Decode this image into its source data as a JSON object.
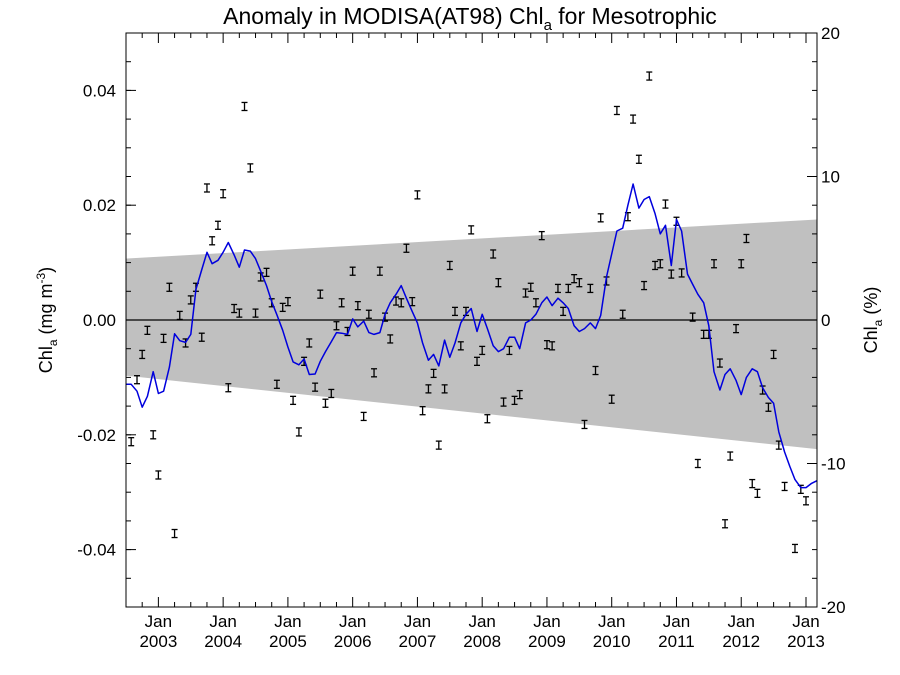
{
  "chart_data": {
    "type": "scatter",
    "title": "Anomaly in MODISA(AT98) Chl",
    "title_sub": "a",
    "title_suffix": " for Mesotrophic",
    "ylabel_left": "Chl",
    "ylabel_left_sub": "a",
    "ylabel_left_units": " (mg m",
    "ylabel_left_sup": "-3",
    "ylabel_left_close": ")",
    "ylabel_right": "Chl",
    "ylabel_right_sub": "a",
    "ylabel_right_units": " (%)",
    "x_range": [
      2002.5,
      2013.17
    ],
    "ylim_left": [
      -0.05,
      0.05
    ],
    "ylim_right": [
      -20,
      20
    ],
    "x_ticks": [
      {
        "x": 2003.0,
        "line1": "Jan",
        "line2": "2003"
      },
      {
        "x": 2004.0,
        "line1": "Jan",
        "line2": "2004"
      },
      {
        "x": 2005.0,
        "line1": "Jan",
        "line2": "2005"
      },
      {
        "x": 2006.0,
        "line1": "Jan",
        "line2": "2006"
      },
      {
        "x": 2007.0,
        "line1": "Jan",
        "line2": "2007"
      },
      {
        "x": 2008.0,
        "line1": "Jan",
        "line2": "2008"
      },
      {
        "x": 2009.0,
        "line1": "Jan",
        "line2": "2009"
      },
      {
        "x": 2010.0,
        "line1": "Jan",
        "line2": "2010"
      },
      {
        "x": 2011.0,
        "line1": "Jan",
        "line2": "2011"
      },
      {
        "x": 2012.0,
        "line1": "Jan",
        "line2": "2012"
      },
      {
        "x": 2013.0,
        "line1": "Jan",
        "line2": "2013"
      }
    ],
    "y_ticks_left": [
      {
        "value": 0.04,
        "label": "0.04"
      },
      {
        "value": 0.02,
        "label": "0.02"
      },
      {
        "value": 0.0,
        "label": "0.00"
      },
      {
        "value": -0.02,
        "label": "-0.02"
      },
      {
        "value": -0.04,
        "label": "-0.04"
      }
    ],
    "y_ticks_right": [
      {
        "value": 20,
        "label": "20"
      },
      {
        "value": 10,
        "label": "10"
      },
      {
        "value": 0,
        "label": "0"
      },
      {
        "value": -10,
        "label": "-10"
      },
      {
        "value": -20,
        "label": "-20"
      }
    ],
    "zero_line": true,
    "trend_band": {
      "color": "#c0c0c0",
      "upper": [
        [
          2002.5,
          0.0107
        ],
        [
          2013.17,
          0.0175
        ]
      ],
      "lower": [
        [
          2002.5,
          -0.0097
        ],
        [
          2013.17,
          -0.0225
        ]
      ]
    },
    "points": {
      "color": "#000000",
      "error_halfwidth": 0.0007,
      "values": [
        [
          2002.58,
          -0.0212
        ],
        [
          2002.67,
          -0.0104
        ],
        [
          2002.75,
          -0.006
        ],
        [
          2002.83,
          -0.0018
        ],
        [
          2002.92,
          -0.02
        ],
        [
          2003.0,
          -0.027
        ],
        [
          2003.08,
          -0.0032
        ],
        [
          2003.17,
          0.0057
        ],
        [
          2003.25,
          -0.0372
        ],
        [
          2003.33,
          0.0008
        ],
        [
          2003.42,
          -0.004
        ],
        [
          2003.5,
          0.0035
        ],
        [
          2003.58,
          0.0057
        ],
        [
          2003.67,
          -0.003
        ],
        [
          2003.75,
          0.023
        ],
        [
          2003.83,
          0.0138
        ],
        [
          2003.92,
          0.0165
        ],
        [
          2004.0,
          0.022
        ],
        [
          2004.08,
          -0.0118
        ],
        [
          2004.17,
          0.002
        ],
        [
          2004.25,
          0.0012
        ],
        [
          2004.33,
          0.0372
        ],
        [
          2004.42,
          0.0265
        ],
        [
          2004.5,
          0.0012
        ],
        [
          2004.58,
          0.0075
        ],
        [
          2004.67,
          0.0083
        ],
        [
          2004.75,
          0.003
        ],
        [
          2004.83,
          -0.0112
        ],
        [
          2004.92,
          0.0022
        ],
        [
          2005.0,
          0.0032
        ],
        [
          2005.08,
          -0.014
        ],
        [
          2005.17,
          -0.0195
        ],
        [
          2005.25,
          -0.0072
        ],
        [
          2005.33,
          -0.004
        ],
        [
          2005.42,
          -0.0117
        ],
        [
          2005.5,
          0.0045
        ],
        [
          2005.58,
          -0.0145
        ],
        [
          2005.67,
          -0.0128
        ],
        [
          2005.75,
          -0.001
        ],
        [
          2005.83,
          0.003
        ],
        [
          2005.92,
          -0.002
        ],
        [
          2006.0,
          0.0085
        ],
        [
          2006.08,
          0.0025
        ],
        [
          2006.17,
          -0.0168
        ],
        [
          2006.25,
          0.001
        ],
        [
          2006.33,
          -0.0092
        ],
        [
          2006.42,
          0.0085
        ],
        [
          2006.5,
          0.0005
        ],
        [
          2006.58,
          -0.0033
        ],
        [
          2006.67,
          0.0033
        ],
        [
          2006.75,
          0.003
        ],
        [
          2006.83,
          0.0125
        ],
        [
          2006.92,
          0.0032
        ],
        [
          2007.0,
          0.0218
        ],
        [
          2007.08,
          -0.0158
        ],
        [
          2007.17,
          -0.012
        ],
        [
          2007.25,
          -0.0093
        ],
        [
          2007.33,
          -0.0218
        ],
        [
          2007.42,
          -0.012
        ],
        [
          2007.5,
          0.0095
        ],
        [
          2007.58,
          0.0015
        ],
        [
          2007.67,
          -0.0045
        ],
        [
          2007.75,
          0.0015
        ],
        [
          2007.83,
          0.0157
        ],
        [
          2007.92,
          -0.0072
        ],
        [
          2008.0,
          -0.0053
        ],
        [
          2008.08,
          -0.0172
        ],
        [
          2008.17,
          0.0115
        ],
        [
          2008.25,
          0.0065
        ],
        [
          2008.33,
          -0.0143
        ],
        [
          2008.42,
          -0.0053
        ],
        [
          2008.5,
          -0.014
        ],
        [
          2008.58,
          -0.013
        ],
        [
          2008.67,
          0.0047
        ],
        [
          2008.75,
          0.0057
        ],
        [
          2008.83,
          0.003
        ],
        [
          2008.92,
          0.0147
        ],
        [
          2009.0,
          -0.0043
        ],
        [
          2009.08,
          -0.0045
        ],
        [
          2009.17,
          0.0055
        ],
        [
          2009.25,
          0.0015
        ],
        [
          2009.33,
          0.0055
        ],
        [
          2009.42,
          0.0072
        ],
        [
          2009.5,
          0.0065
        ],
        [
          2009.58,
          -0.0182
        ],
        [
          2009.67,
          0.0055
        ],
        [
          2009.75,
          -0.0088
        ],
        [
          2009.83,
          0.0178
        ],
        [
          2009.92,
          0.0068
        ],
        [
          2010.0,
          -0.0138
        ],
        [
          2010.08,
          0.0365
        ],
        [
          2010.17,
          0.001
        ],
        [
          2010.25,
          0.018
        ],
        [
          2010.33,
          0.035
        ],
        [
          2010.42,
          0.028
        ],
        [
          2010.5,
          0.006
        ],
        [
          2010.58,
          0.0425
        ],
        [
          2010.67,
          0.0095
        ],
        [
          2010.75,
          0.0098
        ],
        [
          2010.83,
          0.0202
        ],
        [
          2010.92,
          0.008
        ],
        [
          2011.0,
          0.0172
        ],
        [
          2011.08,
          0.0082
        ],
        [
          2011.25,
          0.0005
        ],
        [
          2011.33,
          -0.025
        ],
        [
          2011.42,
          -0.0025
        ],
        [
          2011.5,
          -0.0025
        ],
        [
          2011.58,
          0.0098
        ],
        [
          2011.67,
          -0.0075
        ],
        [
          2011.75,
          -0.0355
        ],
        [
          2011.83,
          -0.0237
        ],
        [
          2011.92,
          -0.0015
        ],
        [
          2012.0,
          0.0098
        ],
        [
          2012.08,
          0.0142
        ],
        [
          2012.17,
          -0.0285
        ],
        [
          2012.25,
          -0.0302
        ],
        [
          2012.33,
          -0.0122
        ],
        [
          2012.42,
          -0.0152
        ],
        [
          2012.5,
          -0.006
        ],
        [
          2012.58,
          -0.0218
        ],
        [
          2012.67,
          -0.029
        ],
        [
          2012.83,
          -0.0398
        ],
        [
          2012.92,
          -0.0295
        ],
        [
          2013.0,
          -0.0315
        ]
      ]
    },
    "series": [
      {
        "type": "line",
        "color": "#0000dd",
        "x": [
          2002.5,
          2002.58,
          2002.67,
          2002.75,
          2002.83,
          2002.92,
          2003.0,
          2003.08,
          2003.17,
          2003.25,
          2003.33,
          2003.42,
          2003.5,
          2003.58,
          2003.67,
          2003.75,
          2003.83,
          2003.92,
          2004.0,
          2004.08,
          2004.17,
          2004.25,
          2004.33,
          2004.42,
          2004.5,
          2004.58,
          2004.67,
          2004.75,
          2004.83,
          2004.92,
          2005.0,
          2005.08,
          2005.17,
          2005.25,
          2005.33,
          2005.42,
          2005.5,
          2005.58,
          2005.67,
          2005.75,
          2005.83,
          2005.92,
          2006.0,
          2006.08,
          2006.17,
          2006.25,
          2006.33,
          2006.42,
          2006.5,
          2006.58,
          2006.67,
          2006.75,
          2006.83,
          2006.92,
          2007.0,
          2007.08,
          2007.17,
          2007.25,
          2007.33,
          2007.42,
          2007.5,
          2007.58,
          2007.67,
          2007.75,
          2007.83,
          2007.92,
          2008.0,
          2008.08,
          2008.17,
          2008.25,
          2008.33,
          2008.42,
          2008.5,
          2008.58,
          2008.67,
          2008.75,
          2008.83,
          2008.92,
          2009.0,
          2009.08,
          2009.17,
          2009.25,
          2009.33,
          2009.42,
          2009.5,
          2009.58,
          2009.67,
          2009.75,
          2009.83,
          2009.92,
          2010.0,
          2010.08,
          2010.17,
          2010.25,
          2010.33,
          2010.42,
          2010.5,
          2010.58,
          2010.67,
          2010.75,
          2010.83,
          2010.92,
          2011.0,
          2011.08,
          2011.17,
          2011.25,
          2011.33,
          2011.42,
          2011.5,
          2011.58,
          2011.67,
          2011.75,
          2011.83,
          2011.92,
          2012.0,
          2012.08,
          2012.17,
          2012.25,
          2012.33,
          2012.42,
          2012.5,
          2012.58,
          2012.67,
          2012.75,
          2012.83,
          2012.92,
          2013.0,
          2013.08,
          2013.17
        ],
        "y": [
          -0.0112,
          -0.0112,
          -0.0124,
          -0.0152,
          -0.0133,
          -0.009,
          -0.0128,
          -0.0124,
          -0.0082,
          -0.0024,
          -0.0036,
          -0.0039,
          -0.0025,
          0.0053,
          0.0088,
          0.0118,
          0.0098,
          0.0104,
          0.0118,
          0.0135,
          0.0113,
          0.0092,
          0.0122,
          0.012,
          0.0107,
          0.0085,
          0.006,
          0.0032,
          0.0009,
          -0.0018,
          -0.0047,
          -0.0073,
          -0.0078,
          -0.0068,
          -0.0095,
          -0.0094,
          -0.0072,
          -0.0055,
          -0.0038,
          -0.0022,
          -0.0023,
          -0.0025,
          0.0002,
          -0.0012,
          -0.0002,
          -0.0022,
          -0.0025,
          -0.0022,
          0.001,
          0.003,
          0.0045,
          0.006,
          0.0038,
          0.0015,
          -0.0005,
          -0.004,
          -0.007,
          -0.006,
          -0.008,
          -0.0035,
          -0.0065,
          -0.004,
          -0.0005,
          0.001,
          0.002,
          -0.002,
          0.001,
          -0.0015,
          -0.0045,
          -0.0055,
          -0.005,
          -0.003,
          -0.003,
          -0.005,
          -0.0005,
          0.0,
          0.001,
          0.003,
          0.004,
          0.0025,
          0.0038,
          0.003,
          0.002,
          -0.001,
          -0.002,
          -0.0015,
          -0.0005,
          -0.0015,
          0.0008,
          0.0075,
          0.0115,
          0.0155,
          0.016,
          0.02,
          0.0237,
          0.0195,
          0.021,
          0.0215,
          0.0185,
          0.015,
          0.0165,
          0.0095,
          0.0175,
          0.0155,
          0.008,
          0.0062,
          0.0045,
          0.003,
          -0.001,
          -0.009,
          -0.0122,
          -0.0095,
          -0.0085,
          -0.0105,
          -0.013,
          -0.01,
          -0.0085,
          -0.009,
          -0.0118,
          -0.0135,
          -0.0145,
          -0.0195,
          -0.023,
          -0.0255,
          -0.0278,
          -0.0292,
          -0.0292,
          -0.0285,
          -0.028
        ]
      }
    ]
  }
}
